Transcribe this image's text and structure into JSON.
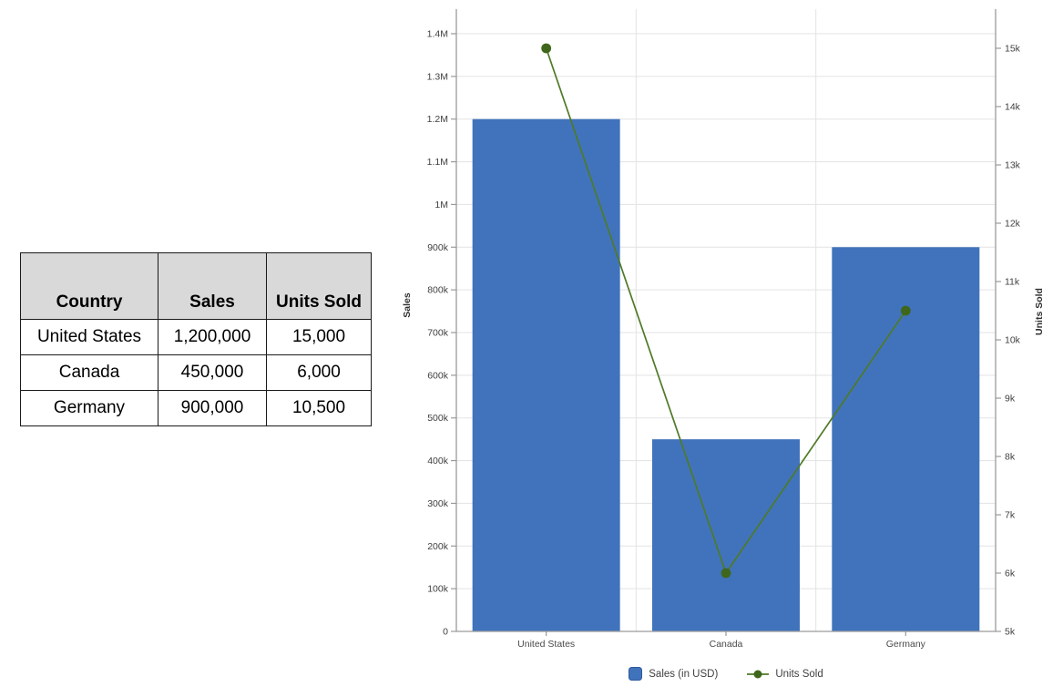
{
  "table": {
    "headers": [
      "Country",
      "Sales",
      "Units Sold"
    ],
    "rows": [
      [
        "United States",
        "1,200,000",
        "15,000"
      ],
      [
        "Canada",
        "450,000",
        "6,000"
      ],
      [
        "Germany",
        "900,000",
        "10,500"
      ]
    ],
    "header_bg": "#d9d9d9"
  },
  "chart_data": {
    "type": "combo",
    "categories": [
      "United States",
      "Canada",
      "Germany"
    ],
    "series": [
      {
        "name": "Sales (in USD)",
        "type": "bar",
        "axis": "left",
        "values": [
          1200000,
          450000,
          900000
        ]
      },
      {
        "name": "Units Sold",
        "type": "line",
        "axis": "right",
        "values": [
          15000,
          6000,
          10500
        ]
      }
    ],
    "left_axis": {
      "title": "Sales",
      "min": 0,
      "max": 1400000,
      "tick_step": 100000,
      "tick_labels": [
        "0",
        "100k",
        "200k",
        "300k",
        "400k",
        "500k",
        "600k",
        "700k",
        "800k",
        "900k",
        "1M",
        "1.1M",
        "1.2M",
        "1.3M",
        "1.4M"
      ]
    },
    "right_axis": {
      "title": "Units Sold",
      "min": 5000,
      "max": 15000,
      "tick_step": 1000,
      "tick_labels": [
        "5k",
        "6k",
        "7k",
        "8k",
        "9k",
        "10k",
        "11k",
        "12k",
        "13k",
        "14k",
        "15k"
      ]
    },
    "legend": [
      "Sales (in USD)",
      "Units Sold"
    ],
    "grid": {
      "horizontal": true,
      "vertical_band_separators": true,
      "legend_position": "bottom"
    },
    "colors": {
      "bar": "#4173bc",
      "bar_border": "#2e599c",
      "line": "#4e7a27",
      "marker": "#3f671c",
      "grid": "#e3e3e3",
      "axis": "#9a9a9a",
      "tick_text": "#3f3f3f",
      "category_text": "#4a4a4a"
    }
  }
}
